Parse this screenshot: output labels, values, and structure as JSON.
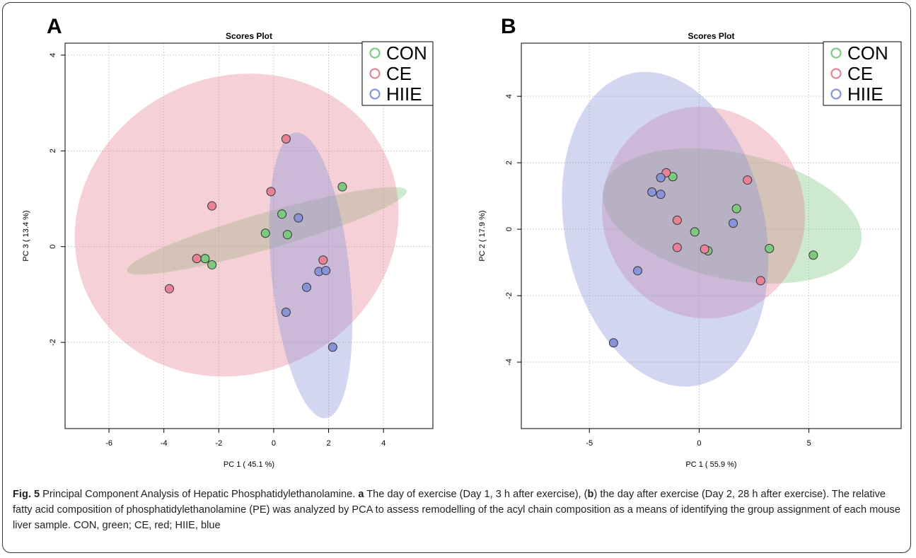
{
  "chart_data": [
    {
      "type": "scatter",
      "panel": "A",
      "title": "Scores Plot",
      "xlabel": "PC 1 ( 45.1 %)",
      "ylabel": "PC 3 ( 13.4 %)",
      "xlim": [
        -7.6,
        5.8
      ],
      "ylim": [
        -3.8,
        4.25
      ],
      "xticks": [
        -6,
        -4,
        -2,
        0,
        2,
        4
      ],
      "yticks": [
        -2,
        0,
        2,
        4
      ],
      "grid": true,
      "legend_position": "top-right",
      "series": [
        {
          "name": "CON",
          "color": "#7dc97f",
          "points": [
            [
              -2.5,
              -0.25
            ],
            [
              -2.25,
              -0.38
            ],
            [
              -0.3,
              0.28
            ],
            [
              0.3,
              0.68
            ],
            [
              0.5,
              0.25
            ],
            [
              2.5,
              1.25
            ]
          ],
          "ellipse": {
            "cx": -0.25,
            "cy": 0.33,
            "rx": 5.3,
            "ry": 0.38,
            "angle_deg": 16
          }
        },
        {
          "name": "CE",
          "color": "#e68397",
          "points": [
            [
              -3.8,
              -0.88
            ],
            [
              -2.8,
              -0.25
            ],
            [
              -2.25,
              0.85
            ],
            [
              -0.1,
              1.15
            ],
            [
              0.45,
              2.25
            ],
            [
              1.8,
              -0.28
            ]
          ],
          "ellipse": {
            "cx": -1.35,
            "cy": 0.45,
            "rx": 6.0,
            "ry": 3.1,
            "angle_deg": 25
          }
        },
        {
          "name": "HIIE",
          "color": "#8893d8",
          "points": [
            [
              0.9,
              0.6
            ],
            [
              1.65,
              -0.52
            ],
            [
              1.9,
              -0.5
            ],
            [
              1.2,
              -0.85
            ],
            [
              0.45,
              -1.37
            ],
            [
              2.15,
              -2.1
            ]
          ],
          "ellipse": {
            "cx": 1.35,
            "cy": -0.6,
            "rx": 1.42,
            "ry": 3.0,
            "angle_deg": 6
          }
        }
      ]
    },
    {
      "type": "scatter",
      "panel": "B",
      "title": "Scores Plot",
      "xlabel": "PC 1 ( 55.9 %)",
      "ylabel": "PC 2 ( 17.9 %)",
      "xlim": [
        -8.1,
        9.2
      ],
      "ylim": [
        -6.0,
        5.6
      ],
      "xticks": [
        -5,
        0,
        5
      ],
      "yticks": [
        -4,
        -2,
        0,
        2,
        4
      ],
      "grid": true,
      "legend_position": "top-right",
      "series": [
        {
          "name": "CON",
          "color": "#7dc97f",
          "points": [
            [
              -1.2,
              1.58
            ],
            [
              -0.2,
              -0.08
            ],
            [
              0.4,
              -0.65
            ],
            [
              1.7,
              0.62
            ],
            [
              3.2,
              -0.58
            ],
            [
              5.2,
              -0.78
            ]
          ],
          "ellipse": {
            "cx": 1.5,
            "cy": 0.4,
            "rx": 6.0,
            "ry": 1.9,
            "angle_deg": -12
          }
        },
        {
          "name": "CE",
          "color": "#e68397",
          "points": [
            [
              -1.5,
              1.7
            ],
            [
              -1.0,
              0.27
            ],
            [
              -1.0,
              -0.55
            ],
            [
              0.25,
              -0.6
            ],
            [
              2.2,
              1.48
            ],
            [
              2.8,
              -1.55
            ]
          ],
          "ellipse": {
            "cx": 0.2,
            "cy": 0.5,
            "rx": 4.6,
            "ry": 3.2,
            "angle_deg": 18
          }
        },
        {
          "name": "HIIE",
          "color": "#8893d8",
          "points": [
            [
              -1.75,
              1.55
            ],
            [
              -2.15,
              1.12
            ],
            [
              -1.75,
              1.05
            ],
            [
              1.55,
              0.18
            ],
            [
              -2.8,
              -1.25
            ],
            [
              -3.9,
              -3.42
            ]
          ],
          "ellipse": {
            "cx": -1.55,
            "cy": 0.0,
            "rx": 4.55,
            "ry": 4.8,
            "angle_deg": 12
          }
        }
      ]
    }
  ],
  "caption": {
    "fig_label": "Fig. 5",
    "title": " Principal Component Analysis of Hepatic Phosphatidylethanolamine. ",
    "a_label": "a",
    "a_text": " The day of exercise (Day 1, 3 h after exercise), (",
    "b_label": "b",
    "b_text": ") the day after exercise (Day 2, 28 h after exercise). The relative fatty acid composition of phosphatidylethanolamine (PE) was analyzed by PCA to assess remodelling of the acyl chain composition as a means of identifying the group assignment of each mouse liver sample. CON, green; CE, red; HIIE, blue"
  }
}
